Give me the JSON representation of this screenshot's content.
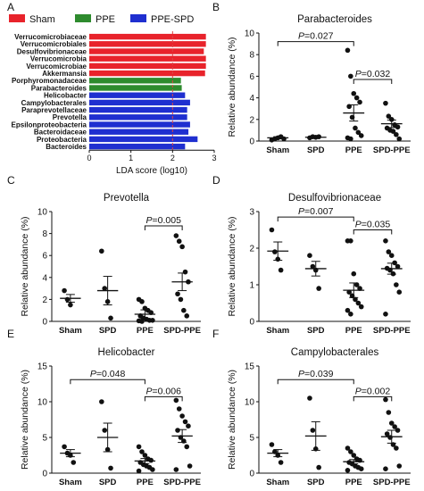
{
  "figure": {
    "panel_letters": [
      "A",
      "B",
      "C",
      "D",
      "E",
      "F"
    ]
  },
  "chart_data": [
    {
      "type": "bar",
      "orientation": "horizontal",
      "panel": "A",
      "title": "",
      "xlabel": "LDA score (log10)",
      "xlim": [
        0,
        3
      ],
      "xticks": [
        "0",
        "1",
        "2",
        "3"
      ],
      "threshold_line": 2,
      "legend": [
        {
          "name": "Sham",
          "color": "#e8232b"
        },
        {
          "name": "PPE",
          "color": "#2e8b2e"
        },
        {
          "name": "PPE-SPD",
          "color": "#1f2fd0"
        }
      ],
      "categories": [
        "Verrucomicrobiaceae",
        "Verrucomicrobiales",
        "Desulfovibrionaceae",
        "Verrucomicrobia",
        "Verrucomicrobiae",
        "Akkermansia",
        "Porphyromonadaceae",
        "Parabacteroides",
        "Helicobacter",
        "Campylobacterales",
        "Paraprevotellaceae",
        "Prevotella",
        "Epsilonproteobacteria",
        "Bacteroidaceae",
        "Proteobacteria",
        "Bacteroides"
      ],
      "values": [
        2.8,
        2.8,
        2.75,
        2.8,
        2.8,
        2.78,
        2.2,
        2.22,
        2.3,
        2.42,
        2.35,
        2.35,
        2.42,
        2.38,
        2.6,
        2.3
      ],
      "groups": [
        "Sham",
        "Sham",
        "Sham",
        "Sham",
        "Sham",
        "Sham",
        "PPE",
        "PPE",
        "PPE-SPD",
        "PPE-SPD",
        "PPE-SPD",
        "PPE-SPD",
        "PPE-SPD",
        "PPE-SPD",
        "PPE-SPD",
        "PPE-SPD"
      ]
    },
    {
      "type": "scatter",
      "panel": "B",
      "title": "Parabacteroides",
      "ylabel": "Relative abundance (%)",
      "categories": [
        "Sham",
        "SPD",
        "PPE",
        "SPD-PPE"
      ],
      "ylim": [
        0,
        10
      ],
      "yticks": [
        0,
        2,
        4,
        6,
        8,
        10
      ],
      "series": [
        {
          "points": [
            0.1,
            0.2,
            0.3,
            0.4,
            0.2
          ],
          "mean": 0.3,
          "sem": 0.1
        },
        {
          "points": [
            0.3,
            0.4,
            0.35,
            0.4
          ],
          "mean": 0.35,
          "sem": 0.05
        },
        {
          "points": [
            8.4,
            6.0,
            4.4,
            4.0,
            3.6,
            3.2,
            2.2,
            1.2,
            0.8,
            0.5,
            0.3,
            0.2
          ],
          "mean": 2.6,
          "sem": 0.75
        },
        {
          "points": [
            3.5,
            2.3,
            2.0,
            1.5,
            1.3,
            1.2,
            1.0,
            0.9,
            0.6,
            0.2
          ],
          "mean": 1.6,
          "sem": 0.35
        }
      ],
      "annotations": [
        {
          "from": 0,
          "to": 2,
          "text": "P=0.027",
          "y": 9.2
        },
        {
          "from": 2,
          "to": 3,
          "text": "P=0.032",
          "y": 5.7
        }
      ]
    },
    {
      "type": "scatter",
      "panel": "C",
      "title": "Prevotella",
      "ylabel": "Relative abundance (%)",
      "categories": [
        "Sham",
        "SPD",
        "PPE",
        "SPD-PPE"
      ],
      "ylim": [
        0,
        10
      ],
      "yticks": [
        0,
        2,
        4,
        6,
        8,
        10
      ],
      "series": [
        {
          "points": [
            2.8,
            2.0,
            1.5
          ],
          "mean": 2.1,
          "sem": 0.35
        },
        {
          "points": [
            6.4,
            3.0,
            1.8,
            0.3
          ],
          "mean": 2.8,
          "sem": 1.3
        },
        {
          "points": [
            2.0,
            1.8,
            1.2,
            1.0,
            0.8,
            0.5,
            0.3,
            0.2,
            0.1,
            0.1,
            0.05,
            0.0
          ],
          "mean": 0.65,
          "sem": 0.4
        },
        {
          "points": [
            7.8,
            7.3,
            6.8,
            4.5,
            3.6,
            2.5,
            2.0,
            1.0,
            0.5
          ],
          "mean": 3.6,
          "sem": 0.8
        }
      ],
      "annotations": [
        {
          "from": 2,
          "to": 3,
          "text": "P=0.005",
          "y": 8.7
        }
      ]
    },
    {
      "type": "scatter",
      "panel": "D",
      "title": "Desulfovibrionaceae",
      "ylabel": "Relative abundance (%)",
      "categories": [
        "Sham",
        "SPD",
        "PPE",
        "SPD-PPE"
      ],
      "ylim": [
        0,
        3
      ],
      "yticks": [
        0,
        1,
        2,
        3
      ],
      "series": [
        {
          "points": [
            2.5,
            1.9,
            1.7,
            1.4
          ],
          "mean": 1.92,
          "sem": 0.25
        },
        {
          "points": [
            1.8,
            1.5,
            1.4,
            0.9
          ],
          "mean": 1.44,
          "sem": 0.2
        },
        {
          "points": [
            2.2,
            2.2,
            1.3,
            1.0,
            0.9,
            0.8,
            0.7,
            0.6,
            0.5,
            0.4,
            0.3,
            0.2
          ],
          "mean": 0.85,
          "sem": 0.2
        },
        {
          "points": [
            2.2,
            1.9,
            1.8,
            1.6,
            1.5,
            1.45,
            1.4,
            1.3,
            1.0,
            0.8,
            0.2
          ],
          "mean": 1.44,
          "sem": 0.15
        }
      ],
      "annotations": [
        {
          "from": 0,
          "to": 2,
          "text": "P=0.007",
          "y": 2.85
        },
        {
          "from": 2,
          "to": 3,
          "text": "P=0.035",
          "y": 2.5
        }
      ]
    },
    {
      "type": "scatter",
      "panel": "E",
      "title": "Helicobacter",
      "ylabel": "Relative abundance (%)",
      "categories": [
        "Sham",
        "SPD",
        "PPE",
        "SPD-PPE"
      ],
      "ylim": [
        0,
        15
      ],
      "yticks": [
        0,
        5,
        10,
        15
      ],
      "series": [
        {
          "points": [
            3.7,
            2.8,
            2.5,
            1.5
          ],
          "mean": 2.8,
          "sem": 0.5
        },
        {
          "points": [
            10.0,
            6.0,
            3.3,
            0.7
          ],
          "mean": 5.0,
          "sem": 2.0
        },
        {
          "points": [
            3.7,
            3.0,
            2.5,
            2.0,
            1.8,
            1.5,
            1.2,
            1.0,
            0.8,
            0.5,
            0.3
          ],
          "mean": 1.7,
          "sem": 0.35
        },
        {
          "points": [
            10.2,
            9.0,
            8.0,
            7.2,
            6.6,
            6.0,
            5.0,
            4.5,
            3.7,
            1.0,
            0.5
          ],
          "mean": 5.2,
          "sem": 0.9
        }
      ],
      "annotations": [
        {
          "from": 0,
          "to": 2,
          "text": "P=0.048",
          "y": 13.1
        },
        {
          "from": 2,
          "to": 3,
          "text": "P=0.006",
          "y": 10.7
        }
      ]
    },
    {
      "type": "scatter",
      "panel": "F",
      "title": "Campylobacterales",
      "ylabel": "Relative abundance (%)",
      "categories": [
        "Sham",
        "SPD",
        "PPE",
        "SPD-PPE"
      ],
      "ylim": [
        0,
        15
      ],
      "yticks": [
        0,
        5,
        10,
        15
      ],
      "series": [
        {
          "points": [
            4.0,
            3.0,
            2.5,
            1.5
          ],
          "mean": 2.8,
          "sem": 0.5
        },
        {
          "points": [
            10.5,
            6.0,
            3.4,
            0.8
          ],
          "mean": 5.2,
          "sem": 2.0
        },
        {
          "points": [
            3.5,
            3.0,
            2.5,
            2.0,
            1.8,
            1.5,
            1.3,
            1.0,
            0.8,
            0.6,
            0.4
          ],
          "mean": 1.6,
          "sem": 0.3
        },
        {
          "points": [
            10.3,
            8.5,
            7.0,
            6.5,
            6.0,
            5.5,
            5.0,
            4.0,
            3.5,
            1.0,
            0.6
          ],
          "mean": 5.1,
          "sem": 0.9
        }
      ],
      "annotations": [
        {
          "from": 0,
          "to": 2,
          "text": "P=0.039",
          "y": 13.1
        },
        {
          "from": 2,
          "to": 3,
          "text": "P=0.002",
          "y": 10.7
        }
      ]
    }
  ]
}
